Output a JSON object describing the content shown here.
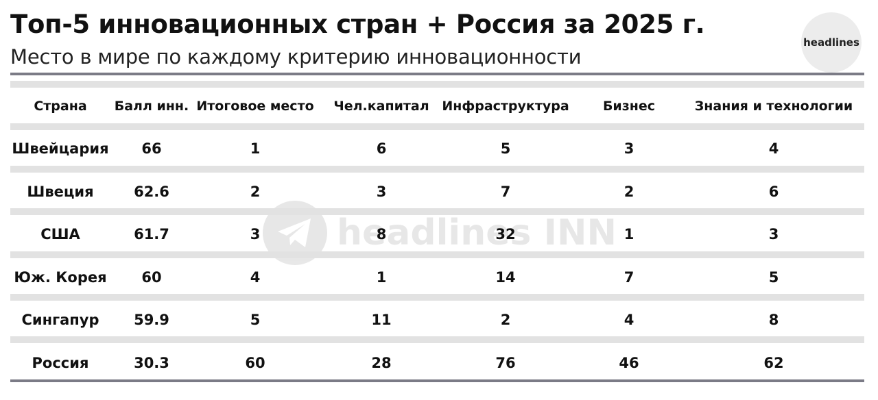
{
  "header": {
    "title": "Топ-5 инновационных стран + Россия за 2025 г.",
    "subtitle": "Место в мире по каждому критерию инновационности",
    "logo_text": "headlines"
  },
  "watermark": {
    "text": "headlines INN",
    "icon": "telegram-icon"
  },
  "colors": {
    "rule": "#7b7b86",
    "band": "#e2e2e2",
    "text": "#111111"
  },
  "chart_data": {
    "type": "table",
    "title": "Топ-5 инновационных стран + Россия за 2025 г.",
    "subtitle": "Место в мире по каждому критерию инновационности",
    "columns": [
      "Страна",
      "Балл инн.",
      "Итоговое место",
      "Чел.капитал",
      "Инфраструктура",
      "Бизнес",
      "Знания и технологии"
    ],
    "rows": [
      [
        "Швейцария",
        "66",
        "1",
        "6",
        "5",
        "3",
        "4"
      ],
      [
        "Швеция",
        "62.6",
        "2",
        "3",
        "7",
        "2",
        "6"
      ],
      [
        "США",
        "61.7",
        "3",
        "8",
        "32",
        "1",
        "3"
      ],
      [
        "Юж. Корея",
        "60",
        "4",
        "1",
        "14",
        "7",
        "5"
      ],
      [
        "Сингапур",
        "59.9",
        "5",
        "11",
        "2",
        "4",
        "8"
      ],
      [
        "Россия",
        "30.3",
        "60",
        "28",
        "76",
        "46",
        "62"
      ]
    ]
  }
}
